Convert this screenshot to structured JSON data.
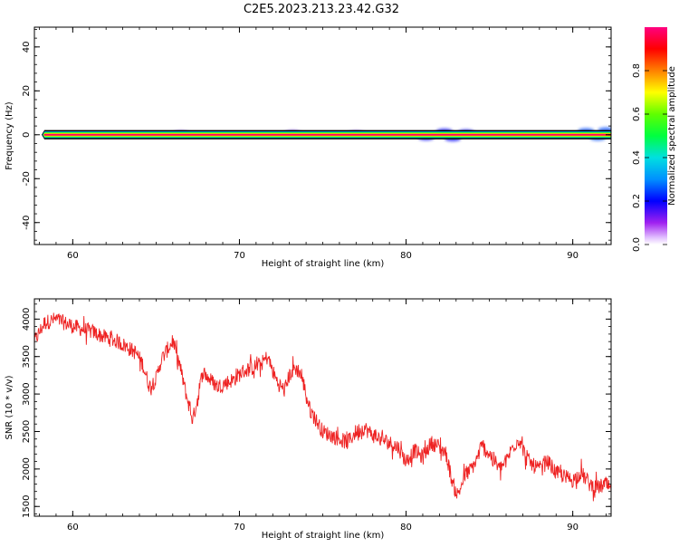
{
  "title": "C2E5.2023.213.23.42.G32",
  "chart_data": [
    {
      "type": "heatmap",
      "xlabel": "Height of straight line (km)",
      "ylabel": "Frequency (Hz)",
      "xlim": [
        57.7,
        92.3
      ],
      "ylim": [
        -50,
        49
      ],
      "x_ticks": [
        60,
        70,
        80,
        90
      ],
      "x_tick_labels": [
        "60",
        "70",
        "80",
        "90"
      ],
      "y_ticks": [
        -40,
        -20,
        0,
        20,
        40
      ],
      "y_tick_labels": [
        "-40",
        "-20",
        "0",
        "20",
        "40"
      ],
      "band": {
        "center_hz": 0,
        "half_width_hz": 1.5,
        "x_start": 58.3,
        "x_end": 92.3
      },
      "scatter_blobs": [
        {
          "x": 66.5,
          "y": 0.6,
          "amp": 0.15
        },
        {
          "x": 73.2,
          "y": 0.8,
          "amp": 0.15
        },
        {
          "x": 77.0,
          "y": 0.6,
          "amp": 0.15
        },
        {
          "x": 81.2,
          "y": -1.4,
          "amp": 0.2
        },
        {
          "x": 82.3,
          "y": 1.6,
          "amp": 0.2
        },
        {
          "x": 82.8,
          "y": -1.8,
          "amp": 0.2
        },
        {
          "x": 83.6,
          "y": 1.2,
          "amp": 0.2
        },
        {
          "x": 90.8,
          "y": 1.8,
          "amp": 0.25
        },
        {
          "x": 91.5,
          "y": -1.5,
          "amp": 0.25
        },
        {
          "x": 92.0,
          "y": 2.2,
          "amp": 0.25
        }
      ],
      "colorbar": {
        "label": "Normalized spectral amplitude",
        "range": [
          0,
          1
        ],
        "ticks": [
          0.0,
          0.2,
          0.4,
          0.6,
          0.8
        ],
        "tick_labels": [
          "0.0",
          "0.2",
          "0.4",
          "0.6",
          "0.8"
        ],
        "stops": [
          {
            "v": 0.0,
            "color": "#ffffff"
          },
          {
            "v": 0.03,
            "color": "#e3c4ff"
          },
          {
            "v": 0.1,
            "color": "#a020f0"
          },
          {
            "v": 0.2,
            "color": "#0000ff"
          },
          {
            "v": 0.3,
            "color": "#0090ff"
          },
          {
            "v": 0.4,
            "color": "#00e0e0"
          },
          {
            "v": 0.5,
            "color": "#00ff40"
          },
          {
            "v": 0.6,
            "color": "#60ff00"
          },
          {
            "v": 0.7,
            "color": "#ffff00"
          },
          {
            "v": 0.8,
            "color": "#ff8000"
          },
          {
            "v": 0.9,
            "color": "#ff0000"
          },
          {
            "v": 1.0,
            "color": "#ff0080"
          }
        ]
      }
    },
    {
      "type": "line",
      "xlabel": "Height of straight line (km)",
      "ylabel": "SNR (10 * v/v)",
      "xlim": [
        57.7,
        92.3
      ],
      "ylim": [
        1370,
        4270
      ],
      "x_ticks": [
        60,
        70,
        80,
        90
      ],
      "x_tick_labels": [
        "60",
        "70",
        "80",
        "90"
      ],
      "y_ticks": [
        1500,
        2000,
        2500,
        3000,
        3500,
        4000
      ],
      "y_tick_labels": [
        "1500",
        "2000",
        "2500",
        "3000",
        "3500",
        "4000"
      ],
      "color": "#ee2222",
      "series": [
        {
          "x": [
            57.7,
            58.3,
            59.0,
            59.8,
            60.5,
            61.2,
            62.0,
            62.7,
            63.3,
            63.8,
            64.2,
            64.6,
            65.0,
            65.3,
            65.7,
            66.0,
            66.4,
            66.8,
            67.2,
            67.5,
            67.8,
            68.2,
            68.7,
            69.2,
            69.7,
            70.2,
            70.8,
            71.3,
            71.7,
            72.0,
            72.3,
            72.7,
            73.0,
            73.3,
            73.6,
            73.9,
            74.2,
            74.6,
            75.0,
            75.5,
            76.0,
            76.5,
            77.0,
            77.5,
            78.0,
            78.5,
            79.0,
            79.5,
            80.0,
            80.5,
            81.0,
            81.5,
            82.0,
            82.4,
            82.8,
            83.1,
            83.5,
            83.9,
            84.2,
            84.5,
            84.8,
            85.2,
            85.6,
            86.0,
            86.4,
            86.8,
            87.2,
            87.6,
            88.0,
            88.5,
            89.0,
            89.5,
            90.0,
            90.5,
            91.0,
            91.5,
            92.0,
            92.3
          ],
          "y": [
            3700,
            3950,
            4000,
            3920,
            3870,
            3830,
            3750,
            3700,
            3620,
            3550,
            3400,
            3100,
            3200,
            3450,
            3600,
            3700,
            3400,
            3000,
            2650,
            2950,
            3300,
            3200,
            3100,
            3150,
            3200,
            3300,
            3350,
            3400,
            3500,
            3300,
            3150,
            3050,
            3250,
            3350,
            3300,
            3100,
            2800,
            2650,
            2500,
            2450,
            2400,
            2350,
            2500,
            2550,
            2450,
            2400,
            2350,
            2300,
            2100,
            2250,
            2150,
            2350,
            2300,
            2200,
            1800,
            1650,
            1900,
            2000,
            2100,
            2300,
            2250,
            2150,
            2000,
            2100,
            2300,
            2400,
            2150,
            2050,
            2000,
            2100,
            1950,
            1900,
            1850,
            1950,
            1800,
            1750,
            1800,
            1700
          ],
          "noise_amplitude": 130,
          "samples": 1200
        }
      ]
    }
  ]
}
